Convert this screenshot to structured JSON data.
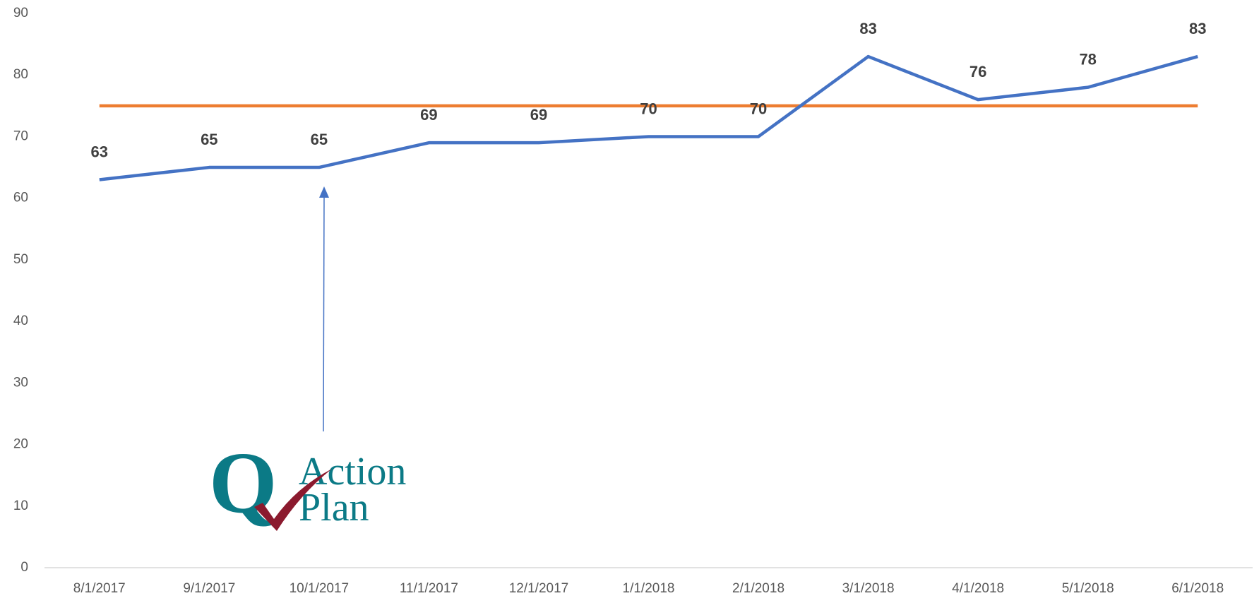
{
  "chart_data": {
    "type": "line",
    "categories": [
      "8/1/2017",
      "9/1/2017",
      "10/1/2017",
      "11/1/2017",
      "12/1/2017",
      "1/1/2018",
      "2/1/2018",
      "3/1/2018",
      "4/1/2018",
      "5/1/2018",
      "6/1/2018"
    ],
    "series": [
      {
        "color": "#4472c4",
        "values": [
          63,
          65,
          65,
          69,
          69,
          70,
          70,
          83,
          76,
          78,
          83
        ],
        "data_labels": true
      },
      {
        "color": "#ed7d31",
        "values": [
          75,
          75,
          75,
          75,
          75,
          75,
          75,
          75,
          75,
          75,
          75
        ],
        "data_labels": false
      }
    ],
    "ylim": [
      0,
      90
    ],
    "yticks": [
      0,
      10,
      20,
      30,
      40,
      50,
      60,
      70,
      80,
      90
    ],
    "grid": false,
    "logo": {
      "letter": "Q",
      "lines": [
        "Action",
        "Plan"
      ]
    }
  }
}
